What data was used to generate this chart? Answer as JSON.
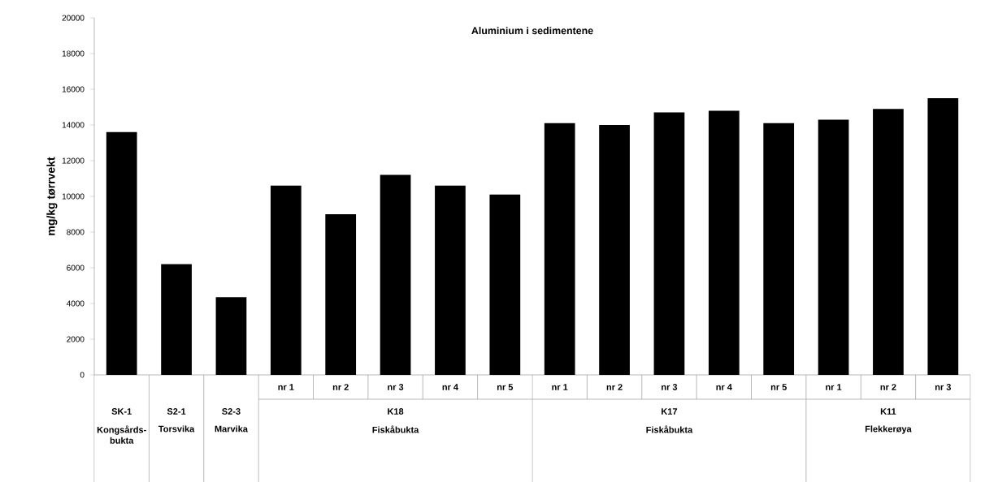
{
  "chart_data": {
    "type": "bar",
    "title": "Aluminium i sedimentene",
    "ylabel": "mg/kg tørrvekt",
    "categories": [
      null,
      null,
      null,
      "nr 1",
      "nr 2",
      "nr 3",
      "nr 4",
      "nr 5",
      "nr 1",
      "nr 2",
      "nr 3",
      "nr 4",
      "nr 5",
      "nr 1",
      "nr 2",
      "nr 3"
    ],
    "values": [
      13600,
      6200,
      4350,
      10600,
      9000,
      11200,
      10600,
      10100,
      14100,
      14000,
      14700,
      14800,
      14100,
      14300,
      14900,
      15500
    ],
    "color": "#000000",
    "ylim": [
      0,
      20000
    ],
    "yticks": [
      0,
      2000,
      4000,
      6000,
      8000,
      10000,
      12000,
      14000,
      16000,
      18000,
      20000
    ],
    "annotations": [
      "SK-1",
      "S2-1",
      "S2-3",
      "Kongsårds-bukta",
      "Torsvika",
      "Marvika",
      "K18",
      "Fiskåbukta",
      "K17",
      "Fiskåbukta",
      "K11",
      "Flekkerøya"
    ]
  }
}
